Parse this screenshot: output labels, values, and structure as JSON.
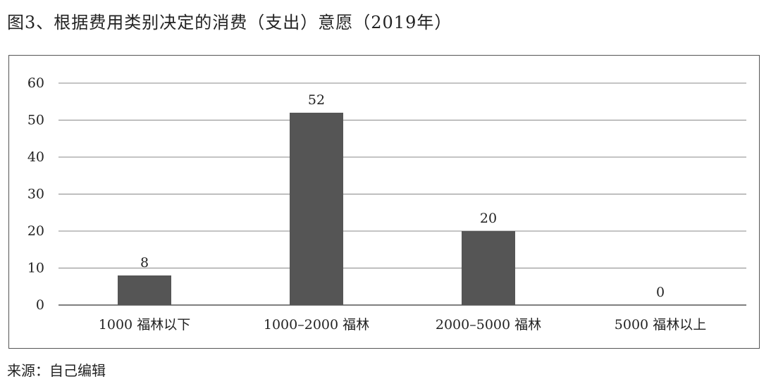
{
  "title": "图3、根据费用类别决定的消费（支出）意愿（2019年）",
  "source": "来源：自己编辑",
  "chart_data": {
    "type": "bar",
    "categories": [
      "1000 福林以下",
      "1000–2000 福林",
      "2000–5000 福林",
      "5000 福林以上"
    ],
    "values": [
      8,
      52,
      20,
      0
    ],
    "data_labels": [
      "8",
      "52",
      "20",
      "0"
    ],
    "yticks": [
      0,
      10,
      20,
      30,
      40,
      50,
      60
    ],
    "ylim": [
      0,
      60
    ],
    "grid": true,
    "legend": "none",
    "bar_color": "#555555",
    "grid_color": "#888888"
  }
}
